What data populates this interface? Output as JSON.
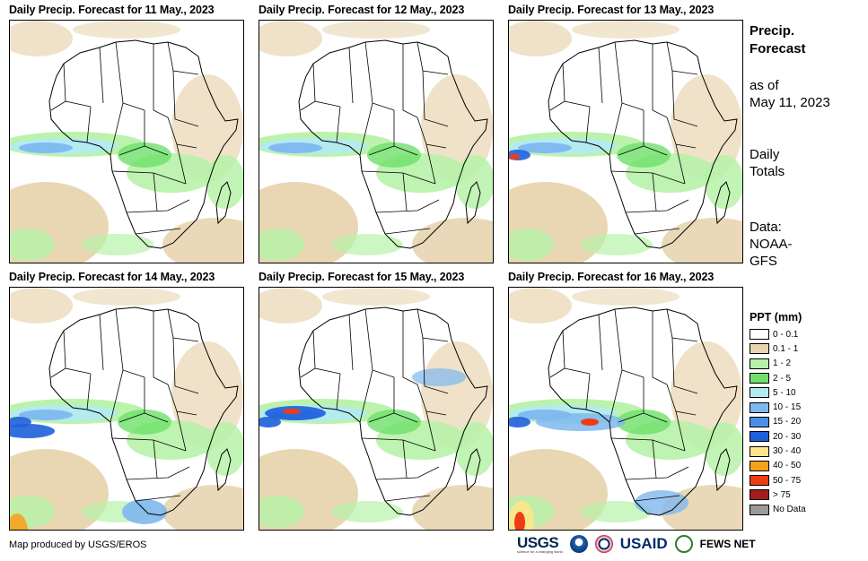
{
  "panels": [
    {
      "title": "Daily Precip. Forecast for 11 May., 2023"
    },
    {
      "title": "Daily Precip. Forecast for 12 May., 2023"
    },
    {
      "title": "Daily Precip. Forecast for 13 May., 2023"
    },
    {
      "title": "Daily Precip. Forecast for 14 May., 2023"
    },
    {
      "title": "Daily Precip. Forecast for 15 May., 2023"
    },
    {
      "title": "Daily Precip. Forecast for 16 May., 2023"
    }
  ],
  "side": {
    "title_line1": "Precip.",
    "title_line2": "Forecast",
    "asof_line1": "as of",
    "asof_line2": "May 11, 2023",
    "totals_line1": "Daily",
    "totals_line2": "Totals",
    "data_line1": "Data:",
    "data_line2": "NOAA-",
    "data_line3": "GFS"
  },
  "legend": {
    "title": "PPT (mm)",
    "items": [
      {
        "label": "0 - 0.1",
        "color": "#ffffff"
      },
      {
        "label": "0.1 - 1",
        "color": "#e8d5b0"
      },
      {
        "label": "1 - 2",
        "color": "#b7f2a8"
      },
      {
        "label": "2 - 5",
        "color": "#6ee06a"
      },
      {
        "label": "5 - 10",
        "color": "#b2eaf2"
      },
      {
        "label": "10 - 15",
        "color": "#7fb8ee"
      },
      {
        "label": "15 - 20",
        "color": "#4a8fe6"
      },
      {
        "label": "20 - 30",
        "color": "#1e5fdc"
      },
      {
        "label": "30 - 40",
        "color": "#fde58a"
      },
      {
        "label": "40 - 50",
        "color": "#f4a21e"
      },
      {
        "label": "50 - 75",
        "color": "#f03c14"
      },
      {
        "label": "> 75",
        "color": "#a51c1c"
      },
      {
        "label": "No Data",
        "color": "#9a9a9a"
      }
    ]
  },
  "credit": "Map produced by USGS/EROS",
  "logos": {
    "usgs": "USGS",
    "usgs_tagline": "science for a changing world",
    "usaid": "USAID",
    "fews": "FEWS NET"
  }
}
